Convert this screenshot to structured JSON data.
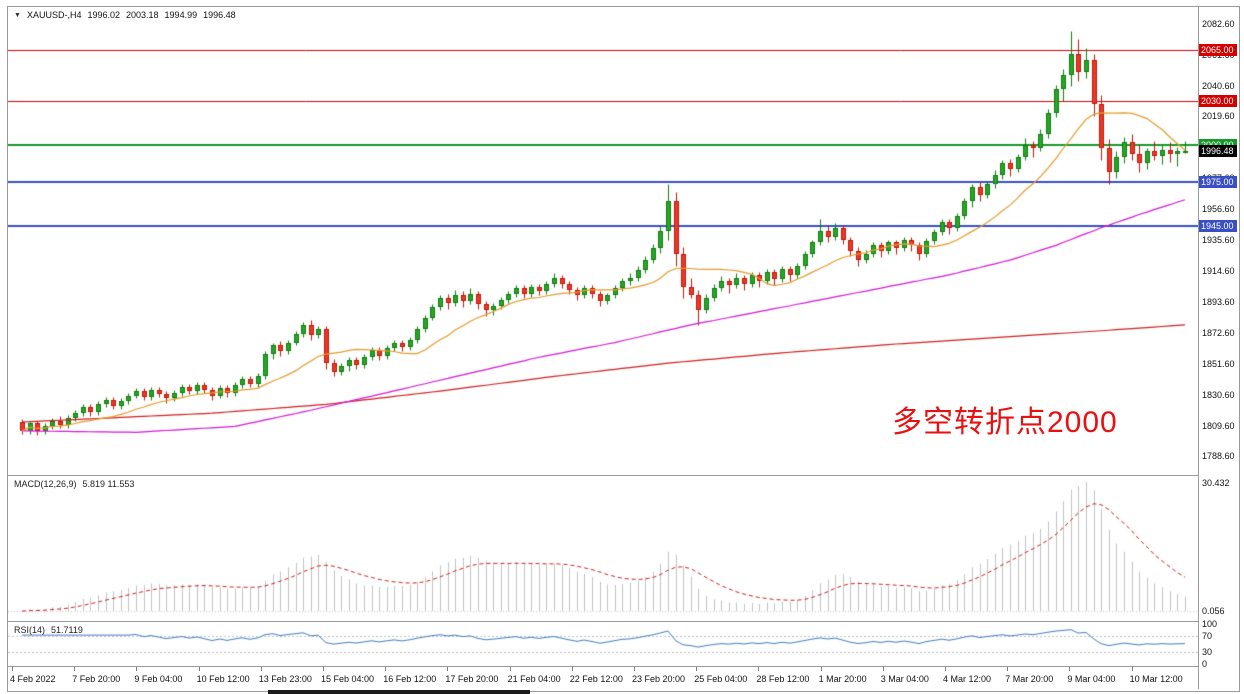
{
  "ui": {
    "dropdown_icon": "▼"
  },
  "chart_data": {
    "type": "candlestick",
    "title": "XAUUSD-,H4",
    "ohlc": {
      "open": "1996.02",
      "high": "2003.18",
      "low": "1994.99",
      "close": "1996.48"
    },
    "ylim": [
      1776,
      2094
    ],
    "y_ticks": [
      "2082.60",
      "2061.60",
      "2040.60",
      "2019.60",
      "1998.60",
      "1977.60",
      "1956.60",
      "1935.60",
      "1914.60",
      "1893.60",
      "1872.60",
      "1851.60",
      "1830.60",
      "1809.60",
      "1788.60"
    ],
    "x_labels": [
      "4 Feb 2022",
      "7 Feb 20:00",
      "9 Feb 04:00",
      "10 Feb 12:00",
      "13 Feb 23:00",
      "15 Feb 04:00",
      "16 Feb 12:00",
      "17 Feb 20:00",
      "21 Feb 04:00",
      "22 Feb 12:00",
      "23 Feb 20:00",
      "25 Feb 04:00",
      "28 Feb 12:00",
      "1 Mar 20:00",
      "3 Mar 04:00",
      "4 Mar 12:00",
      "7 Mar 20:00",
      "9 Mar 04:00",
      "10 Mar 12:00"
    ],
    "levels": [
      {
        "price": 2065,
        "label": "2065.00",
        "color": "#d40000",
        "lw": 1
      },
      {
        "price": 2030,
        "label": "2030.00",
        "color": "#d40000",
        "lw": 1
      },
      {
        "price": 2000,
        "label": "2000.00",
        "color": "#149a28",
        "lw": 2
      },
      {
        "price": 1975,
        "label": "1975.00",
        "color": "#3a4fc4",
        "lw": 2
      },
      {
        "price": 1945,
        "label": "1945.00",
        "color": "#3a4fc4",
        "lw": 2
      }
    ],
    "last_price": {
      "value": 1996.48,
      "label": "1996.48",
      "color": "#000000"
    },
    "moving_averages": [
      {
        "name": "ma-fast",
        "type": "sma",
        "period": 13,
        "color": "#e39b2d"
      },
      {
        "name": "ma-mid",
        "type": "anchors",
        "color": "#d319d3",
        "points": [
          [
            0,
            1806
          ],
          [
            15,
            1805
          ],
          [
            28,
            1809
          ],
          [
            38,
            1820
          ],
          [
            48,
            1832
          ],
          [
            58,
            1844
          ],
          [
            68,
            1856
          ],
          [
            78,
            1866
          ],
          [
            88,
            1878
          ],
          [
            98,
            1888
          ],
          [
            106,
            1896
          ],
          [
            114,
            1904
          ],
          [
            122,
            1912
          ],
          [
            130,
            1922
          ],
          [
            136,
            1932
          ],
          [
            142,
            1944
          ],
          [
            147,
            1953
          ],
          [
            153,
            1963
          ]
        ]
      },
      {
        "name": "ma-slow",
        "type": "anchors",
        "color": "#cf2020",
        "points": [
          [
            0,
            1812
          ],
          [
            25,
            1818
          ],
          [
            40,
            1824
          ],
          [
            55,
            1833
          ],
          [
            70,
            1843
          ],
          [
            85,
            1852
          ],
          [
            100,
            1859
          ],
          [
            115,
            1865
          ],
          [
            130,
            1870
          ],
          [
            142,
            1874
          ],
          [
            153,
            1878
          ]
        ]
      }
    ],
    "candles": [
      [
        1812,
        1814,
        1804,
        1806
      ],
      [
        1806,
        1812,
        1804,
        1811
      ],
      [
        1811,
        1813,
        1803,
        1806
      ],
      [
        1806,
        1811,
        1804,
        1809
      ],
      [
        1809,
        1815,
        1807,
        1813
      ],
      [
        1813,
        1816,
        1808,
        1810
      ],
      [
        1810,
        1817,
        1808,
        1815
      ],
      [
        1815,
        1820,
        1813,
        1818
      ],
      [
        1818,
        1824,
        1816,
        1822
      ],
      [
        1822,
        1824,
        1816,
        1819
      ],
      [
        1819,
        1826,
        1817,
        1824
      ],
      [
        1824,
        1829,
        1822,
        1827
      ],
      [
        1827,
        1829,
        1821,
        1823
      ],
      [
        1823,
        1828,
        1821,
        1826
      ],
      [
        1826,
        1832,
        1824,
        1830
      ],
      [
        1830,
        1835,
        1828,
        1833
      ],
      [
        1833,
        1835,
        1827,
        1829
      ],
      [
        1829,
        1836,
        1827,
        1834
      ],
      [
        1834,
        1836,
        1829,
        1831
      ],
      [
        1831,
        1833,
        1825,
        1828
      ],
      [
        1828,
        1834,
        1826,
        1832
      ],
      [
        1832,
        1838,
        1830,
        1836
      ],
      [
        1836,
        1838,
        1831,
        1833
      ],
      [
        1833,
        1839,
        1831,
        1837
      ],
      [
        1837,
        1839,
        1832,
        1834
      ],
      [
        1834,
        1836,
        1827,
        1830
      ],
      [
        1830,
        1837,
        1828,
        1835
      ],
      [
        1835,
        1837,
        1829,
        1832
      ],
      [
        1832,
        1839,
        1830,
        1837
      ],
      [
        1837,
        1843,
        1835,
        1841
      ],
      [
        1841,
        1843,
        1836,
        1838
      ],
      [
        1838,
        1845,
        1836,
        1843
      ],
      [
        1843,
        1860,
        1841,
        1858
      ],
      [
        1858,
        1866,
        1855,
        1864
      ],
      [
        1864,
        1867,
        1857,
        1860
      ],
      [
        1860,
        1868,
        1858,
        1866
      ],
      [
        1866,
        1874,
        1864,
        1872
      ],
      [
        1872,
        1880,
        1870,
        1878
      ],
      [
        1878,
        1881,
        1868,
        1871
      ],
      [
        1871,
        1877,
        1869,
        1875
      ],
      [
        1875,
        1877,
        1848,
        1852
      ],
      [
        1852,
        1855,
        1843,
        1846
      ],
      [
        1846,
        1852,
        1844,
        1850
      ],
      [
        1850,
        1856,
        1847,
        1854
      ],
      [
        1854,
        1856,
        1848,
        1851
      ],
      [
        1851,
        1858,
        1849,
        1856
      ],
      [
        1856,
        1863,
        1854,
        1861
      ],
      [
        1861,
        1863,
        1854,
        1857
      ],
      [
        1857,
        1864,
        1855,
        1862
      ],
      [
        1862,
        1868,
        1860,
        1866
      ],
      [
        1866,
        1868,
        1860,
        1863
      ],
      [
        1863,
        1870,
        1861,
        1868
      ],
      [
        1868,
        1877,
        1866,
        1875
      ],
      [
        1875,
        1885,
        1873,
        1883
      ],
      [
        1883,
        1892,
        1881,
        1890
      ],
      [
        1890,
        1898,
        1888,
        1896
      ],
      [
        1896,
        1899,
        1889,
        1893
      ],
      [
        1893,
        1902,
        1891,
        1898
      ],
      [
        1898,
        1901,
        1890,
        1894
      ],
      [
        1894,
        1903,
        1892,
        1899
      ],
      [
        1899,
        1901,
        1889,
        1892
      ],
      [
        1892,
        1894,
        1884,
        1888
      ],
      [
        1888,
        1893,
        1885,
        1891
      ],
      [
        1891,
        1897,
        1889,
        1895
      ],
      [
        1895,
        1901,
        1893,
        1899
      ],
      [
        1899,
        1905,
        1897,
        1903
      ],
      [
        1903,
        1905,
        1896,
        1899
      ],
      [
        1899,
        1906,
        1897,
        1904
      ],
      [
        1904,
        1906,
        1898,
        1901
      ],
      [
        1901,
        1908,
        1899,
        1906
      ],
      [
        1906,
        1913,
        1904,
        1910
      ],
      [
        1910,
        1912,
        1903,
        1906
      ],
      [
        1906,
        1908,
        1899,
        1902
      ],
      [
        1902,
        1904,
        1895,
        1898
      ],
      [
        1898,
        1905,
        1896,
        1903
      ],
      [
        1903,
        1905,
        1896,
        1899
      ],
      [
        1899,
        1901,
        1891,
        1894
      ],
      [
        1894,
        1900,
        1892,
        1898
      ],
      [
        1898,
        1905,
        1896,
        1903
      ],
      [
        1903,
        1910,
        1901,
        1908
      ],
      [
        1908,
        1913,
        1905,
        1910
      ],
      [
        1910,
        1918,
        1908,
        1915
      ],
      [
        1915,
        1925,
        1913,
        1922
      ],
      [
        1922,
        1933,
        1920,
        1930
      ],
      [
        1930,
        1945,
        1927,
        1942
      ],
      [
        1942,
        1974,
        1936,
        1962
      ],
      [
        1962,
        1968,
        1918,
        1926
      ],
      [
        1926,
        1931,
        1896,
        1904
      ],
      [
        1904,
        1910,
        1896,
        1898
      ],
      [
        1898,
        1902,
        1878,
        1888
      ],
      [
        1888,
        1899,
        1886,
        1896
      ],
      [
        1896,
        1906,
        1894,
        1903
      ],
      [
        1903,
        1911,
        1901,
        1908
      ],
      [
        1908,
        1910,
        1900,
        1905
      ],
      [
        1905,
        1913,
        1903,
        1910
      ],
      [
        1910,
        1912,
        1902,
        1906
      ],
      [
        1906,
        1914,
        1904,
        1912
      ],
      [
        1912,
        1914,
        1904,
        1908
      ],
      [
        1908,
        1916,
        1906,
        1914
      ],
      [
        1914,
        1916,
        1905,
        1909
      ],
      [
        1909,
        1918,
        1907,
        1916
      ],
      [
        1916,
        1918,
        1908,
        1912
      ],
      [
        1912,
        1920,
        1910,
        1918
      ],
      [
        1918,
        1928,
        1916,
        1926
      ],
      [
        1926,
        1936,
        1924,
        1934
      ],
      [
        1934,
        1950,
        1932,
        1942
      ],
      [
        1942,
        1945,
        1934,
        1938
      ],
      [
        1938,
        1947,
        1936,
        1944
      ],
      [
        1944,
        1946,
        1933,
        1936
      ],
      [
        1936,
        1938,
        1925,
        1928
      ],
      [
        1928,
        1931,
        1918,
        1922
      ],
      [
        1922,
        1929,
        1920,
        1926
      ],
      [
        1926,
        1934,
        1924,
        1932
      ],
      [
        1932,
        1934,
        1924,
        1928
      ],
      [
        1928,
        1936,
        1926,
        1934
      ],
      [
        1934,
        1936,
        1926,
        1930
      ],
      [
        1930,
        1938,
        1928,
        1936
      ],
      [
        1936,
        1938,
        1928,
        1932
      ],
      [
        1932,
        1934,
        1922,
        1926
      ],
      [
        1926,
        1937,
        1924,
        1935
      ],
      [
        1935,
        1943,
        1933,
        1941
      ],
      [
        1941,
        1950,
        1939,
        1948
      ],
      [
        1948,
        1950,
        1940,
        1944
      ],
      [
        1944,
        1954,
        1942,
        1952
      ],
      [
        1952,
        1964,
        1950,
        1962
      ],
      [
        1962,
        1974,
        1958,
        1972
      ],
      [
        1972,
        1975,
        1962,
        1966
      ],
      [
        1966,
        1976,
        1964,
        1974
      ],
      [
        1974,
        1983,
        1971,
        1980
      ],
      [
        1980,
        1990,
        1977,
        1988
      ],
      [
        1988,
        1991,
        1979,
        1984
      ],
      [
        1984,
        1994,
        1982,
        1992
      ],
      [
        1992,
        2005,
        1990,
        2000
      ],
      [
        2000,
        2003,
        1992,
        1998
      ],
      [
        1998,
        2011,
        1996,
        2008
      ],
      [
        2008,
        2025,
        2005,
        2022
      ],
      [
        2022,
        2041,
        2019,
        2038
      ],
      [
        2038,
        2052,
        2030,
        2048
      ],
      [
        2048,
        2078,
        2040,
        2062
      ],
      [
        2062,
        2072,
        2044,
        2050
      ],
      [
        2050,
        2066,
        2046,
        2058
      ],
      [
        2058,
        2062,
        2020,
        2028
      ],
      [
        2028,
        2034,
        1990,
        1998
      ],
      [
        1998,
        2004,
        1974,
        1982
      ],
      [
        1982,
        1996,
        1978,
        1992
      ],
      [
        1992,
        2006,
        1988,
        2002
      ],
      [
        2002,
        2008,
        1990,
        1994
      ],
      [
        1994,
        2000,
        1982,
        1988
      ],
      [
        1988,
        1998,
        1984,
        1996
      ],
      [
        1996,
        2003,
        1990,
        1993
      ],
      [
        1993,
        2000,
        1987,
        1997
      ],
      [
        1997,
        2002,
        1989,
        1994
      ],
      [
        1994,
        1999,
        1986,
        1996
      ],
      [
        1996.02,
        2003.18,
        1994.99,
        1996.48
      ]
    ],
    "indicators": [
      {
        "name": "MACD",
        "label": "MACD(12,26,9)",
        "values": "5.819 11.553",
        "fast": 12,
        "slow": 26,
        "signal": 9,
        "scale_labels": [
          "30.432",
          "0.056"
        ],
        "hist_color": "#c2c2c2",
        "signal_color": "#cc2020"
      },
      {
        "name": "RSI",
        "label": "RSI(14)",
        "values": "51.7119",
        "period": 14,
        "levels": [
          70,
          30
        ],
        "scale_labels": [
          "100",
          "70",
          "30",
          "0"
        ],
        "color": "#3f7dbe"
      }
    ],
    "annotation": {
      "text": "多空转折点2000",
      "color": "#e81010"
    }
  }
}
